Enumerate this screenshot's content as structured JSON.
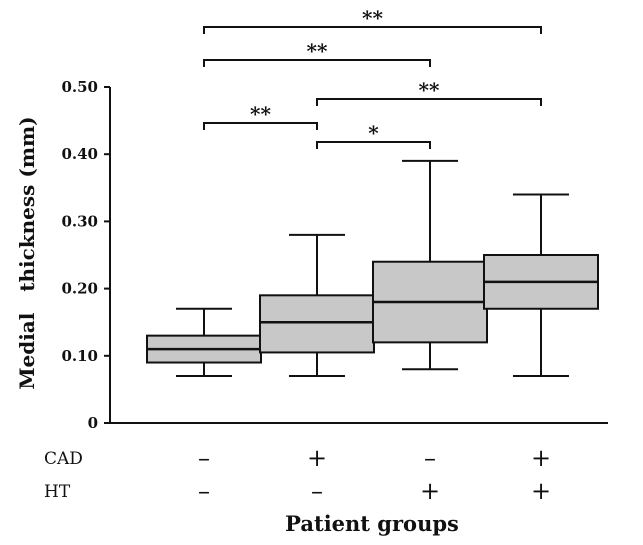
{
  "chart_data": {
    "type": "box",
    "ylabel": "Medial   thickness (mm)",
    "xlabel": "Patient groups",
    "ylim": [
      0,
      0.5
    ],
    "y_ticks": [
      {
        "value": 0,
        "label": "0"
      },
      {
        "value": 0.1,
        "label": "0.10"
      },
      {
        "value": 0.2,
        "label": "0.20"
      },
      {
        "value": 0.3,
        "label": "0.30"
      },
      {
        "value": 0.4,
        "label": "0.40"
      },
      {
        "value": 0.5,
        "label": "0.50"
      }
    ],
    "group_rows": [
      {
        "label": "CAD",
        "signs": [
          "–",
          "+",
          "–",
          "+"
        ]
      },
      {
        "label": "HT",
        "signs": [
          "–",
          "–",
          "+",
          "+"
        ]
      }
    ],
    "groups": [
      {
        "min": 0.07,
        "q1": 0.09,
        "median": 0.11,
        "q3": 0.13,
        "max": 0.17
      },
      {
        "min": 0.07,
        "q1": 0.105,
        "median": 0.15,
        "q3": 0.19,
        "max": 0.28
      },
      {
        "min": 0.08,
        "q1": 0.12,
        "median": 0.18,
        "q3": 0.24,
        "max": 0.39
      },
      {
        "min": 0.07,
        "q1": 0.17,
        "median": 0.21,
        "q3": 0.25,
        "max": 0.34
      }
    ],
    "significance": [
      {
        "from": 0,
        "to": 3,
        "label": "**"
      },
      {
        "from": 0,
        "to": 2,
        "label": "**"
      },
      {
        "from": 0,
        "to": 1,
        "label": "**"
      },
      {
        "from": 1,
        "to": 3,
        "label": "**"
      },
      {
        "from": 1,
        "to": 2,
        "label": "*"
      }
    ],
    "colors": {
      "box_fill": "#c8c8c8",
      "stroke": "#111111"
    }
  }
}
